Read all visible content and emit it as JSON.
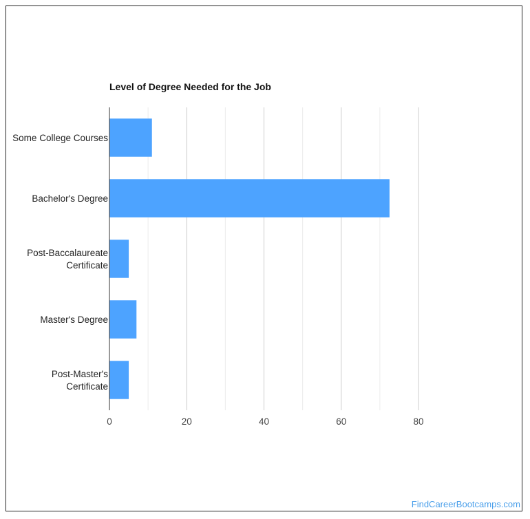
{
  "chart_data": {
    "type": "bar",
    "orientation": "horizontal",
    "title": "Level of Degree Needed for the Job",
    "categories": [
      [
        "Some College Courses"
      ],
      [
        "Bachelor's Degree"
      ],
      [
        "Post-Baccalaureate",
        "Certificate"
      ],
      [
        "Master's Degree"
      ],
      [
        "Post-Master's",
        "Certificate"
      ]
    ],
    "values": [
      11,
      72.5,
      5,
      7,
      5
    ],
    "xlim": [
      0,
      80
    ],
    "xticks": [
      0,
      20,
      40,
      60,
      80
    ],
    "grid": true,
    "bar_color": "#4da3ff"
  },
  "footer": {
    "source": "FindCareerBootcamps.com"
  }
}
